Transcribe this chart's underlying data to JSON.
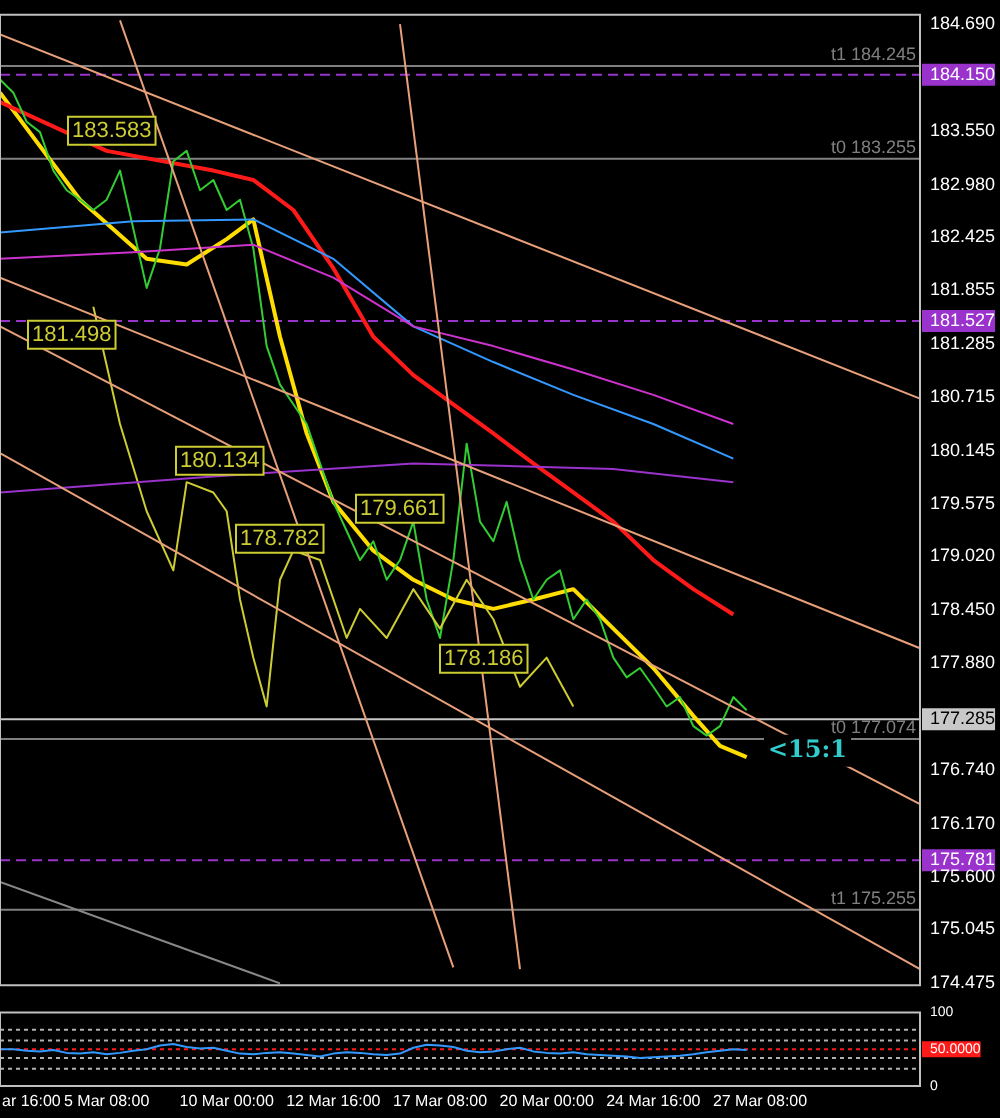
{
  "chart_data": [
    {
      "type": "line",
      "categories": [
        null,
        null,
        "ar 16:00",
        null,
        null,
        null,
        null,
        null,
        "5 Mar 08:00",
        null,
        null,
        null,
        null,
        null,
        null,
        null,
        null,
        "10 Mar 00:00",
        null,
        null,
        null,
        null,
        null,
        null,
        null,
        "12 Mar 16:00",
        null,
        null,
        null,
        null,
        null,
        null,
        null,
        "17 Mar 08:00",
        null,
        null,
        null,
        null,
        null,
        null,
        null,
        "20 Mar 00:00",
        null,
        null,
        null,
        null,
        null,
        null,
        null,
        "24 Mar 16:00",
        null,
        null,
        null,
        null,
        null,
        null,
        null,
        "27 Mar 08:00",
        null,
        null,
        null,
        null,
        null,
        null,
        null,
        null,
        null,
        null,
        null,
        null
      ],
      "series": [
        {
          "color": "#e8a07a",
          "values": [
            184.58,
            null,
            null,
            null,
            null,
            null,
            null,
            null,
            null,
            null,
            null,
            null,
            null,
            null,
            null,
            null,
            null,
            null,
            null,
            null,
            null,
            null,
            null,
            null,
            null,
            null,
            null,
            null,
            null,
            null,
            null,
            null,
            null,
            null,
            null,
            null,
            null,
            null,
            null,
            null,
            null,
            null,
            null,
            null,
            null,
            null,
            null,
            null,
            null,
            null,
            null,
            null,
            null,
            null,
            null,
            null,
            null,
            null,
            null,
            null,
            null,
            null,
            null,
            null,
            null,
            null,
            null,
            null,
            null,
            180.7
          ]
        },
        {
          "color": "#e8a07a",
          "values": [
            181.99,
            null,
            null,
            null,
            null,
            null,
            null,
            null,
            null,
            null,
            null,
            null,
            null,
            null,
            null,
            null,
            null,
            null,
            null,
            null,
            null,
            null,
            null,
            null,
            null,
            null,
            null,
            null,
            null,
            null,
            null,
            null,
            null,
            null,
            null,
            null,
            null,
            null,
            null,
            null,
            null,
            null,
            null,
            null,
            null,
            null,
            null,
            null,
            null,
            null,
            null,
            null,
            null,
            null,
            null,
            null,
            null,
            null,
            null,
            null,
            null,
            null,
            null,
            null,
            null,
            null,
            null,
            null,
            null,
            178.04
          ]
        },
        {
          "color": "#e8a07a",
          "values": [
            181.47,
            null,
            null,
            null,
            null,
            null,
            null,
            null,
            null,
            null,
            null,
            null,
            null,
            null,
            null,
            null,
            null,
            null,
            null,
            null,
            null,
            null,
            null,
            null,
            null,
            null,
            null,
            null,
            null,
            null,
            null,
            null,
            null,
            null,
            null,
            null,
            null,
            null,
            null,
            null,
            null,
            null,
            null,
            null,
            null,
            null,
            null,
            null,
            null,
            null,
            null,
            null,
            null,
            null,
            null,
            null,
            null,
            null,
            null,
            null,
            null,
            null,
            null,
            null,
            null,
            null,
            null,
            null,
            null,
            176.38
          ]
        },
        {
          "color": "#e8a07a",
          "values": [
            180.12,
            null,
            null,
            null,
            null,
            null,
            null,
            null,
            null,
            null,
            null,
            null,
            null,
            null,
            null,
            null,
            null,
            null,
            null,
            null,
            null,
            null,
            null,
            null,
            null,
            null,
            null,
            null,
            null,
            null,
            null,
            null,
            null,
            null,
            null,
            null,
            null,
            null,
            null,
            null,
            null,
            null,
            null,
            null,
            null,
            null,
            null,
            null,
            null,
            null,
            null,
            null,
            null,
            null,
            null,
            null,
            null,
            null,
            null,
            null,
            null,
            null,
            null,
            null,
            null,
            null,
            null,
            null,
            null,
            174.62
          ]
        },
        {
          "color": "#e8a07a",
          "values": [
            null,
            null,
            null,
            null,
            null,
            null,
            null,
            null,
            null,
            184.73,
            null,
            null,
            null,
            null,
            null,
            null,
            null,
            null,
            null,
            null,
            null,
            null,
            null,
            null,
            null,
            null,
            null,
            null,
            null,
            null,
            null,
            null,
            null,
            null,
            174.64,
            null,
            null,
            null,
            null,
            null,
            null,
            null,
            null,
            null,
            null,
            null,
            null,
            null,
            null,
            null,
            null,
            null,
            null,
            null,
            null,
            null,
            null,
            null,
            null,
            null,
            null,
            null,
            null,
            null,
            null,
            null,
            null,
            null,
            null,
            null
          ]
        },
        {
          "color": "#e8a07a",
          "values": [
            null,
            null,
            null,
            null,
            null,
            null,
            null,
            null,
            null,
            null,
            null,
            null,
            null,
            null,
            null,
            null,
            null,
            null,
            null,
            null,
            null,
            null,
            null,
            null,
            null,
            null,
            null,
            null,
            null,
            null,
            184.69,
            null,
            null,
            null,
            null,
            null,
            null,
            null,
            null,
            174.62,
            null,
            null,
            null,
            null,
            null,
            null,
            null,
            null,
            null,
            null,
            null,
            null,
            null,
            null,
            null,
            null,
            null,
            null,
            null,
            null,
            null,
            null,
            null,
            null,
            null,
            null,
            null,
            null,
            null,
            null
          ]
        },
        {
          "color": "#888888",
          "values": [
            175.55,
            null,
            null,
            null,
            null,
            null,
            null,
            null,
            null,
            null,
            null,
            null,
            null,
            null,
            null,
            null,
            null,
            null,
            null,
            null,
            null,
            174.47,
            null,
            null,
            null,
            null,
            null,
            null,
            null,
            null,
            null,
            null,
            null,
            null,
            null,
            null,
            null,
            null,
            null,
            null,
            null,
            null,
            null,
            null,
            null,
            null,
            null,
            null,
            null,
            null,
            null,
            null,
            null,
            null,
            null,
            null,
            null,
            null,
            null,
            null,
            null,
            null,
            null,
            null,
            null,
            null,
            null,
            null,
            null,
            null
          ]
        },
        {
          "color": "#9933cc",
          "values": [
            179.7,
            null,
            null,
            null,
            null,
            null,
            null,
            null,
            null,
            null,
            null,
            null,
            null,
            null,
            null,
            null,
            179.87,
            null,
            null,
            null,
            null,
            null,
            null,
            null,
            null,
            null,
            null,
            null,
            null,
            null,
            null,
            180.01,
            null,
            null,
            null,
            null,
            null,
            null,
            null,
            null,
            null,
            null,
            null,
            null,
            null,
            null,
            179.95,
            null,
            null,
            null,
            null,
            null,
            null,
            null,
            null,
            179.81,
            null,
            null,
            null,
            null,
            null,
            null,
            null,
            null,
            null,
            null,
            null,
            null,
            null,
            null
          ]
        },
        {
          "color": "#cc33cc",
          "values": [
            182.19,
            null,
            null,
            null,
            null,
            null,
            null,
            null,
            null,
            null,
            182.26,
            null,
            null,
            null,
            null,
            null,
            null,
            null,
            null,
            182.34,
            null,
            null,
            null,
            null,
            null,
            181.99,
            null,
            null,
            null,
            null,
            null,
            181.47,
            null,
            null,
            null,
            null,
            null,
            181.26,
            null,
            null,
            null,
            null,
            null,
            181.01,
            null,
            null,
            null,
            null,
            null,
            180.74,
            null,
            null,
            null,
            null,
            null,
            180.43,
            null,
            null,
            null,
            null,
            null,
            null,
            null,
            null,
            null,
            null,
            null,
            null,
            null,
            null
          ]
        },
        {
          "color": "#3399ff",
          "values": [
            182.47,
            null,
            null,
            null,
            null,
            null,
            null,
            null,
            null,
            null,
            182.59,
            null,
            null,
            null,
            null,
            null,
            null,
            null,
            null,
            182.61,
            null,
            null,
            null,
            null,
            null,
            182.19,
            null,
            null,
            null,
            null,
            null,
            181.47,
            null,
            null,
            null,
            null,
            null,
            181.09,
            null,
            null,
            null,
            null,
            null,
            180.74,
            null,
            null,
            null,
            null,
            null,
            180.43,
            null,
            null,
            null,
            null,
            null,
            180.06,
            null,
            null,
            null,
            null,
            null,
            null,
            null,
            null,
            null,
            null,
            null,
            null,
            null,
            null
          ]
        },
        {
          "color": "#cccc33",
          "values": [
            null,
            null,
            null,
            null,
            null,
            null,
            null,
            181.68,
            null,
            180.43,
            null,
            179.5,
            null,
            178.87,
            179.81,
            null,
            179.7,
            179.5,
            178.56,
            177.94,
            177.42,
            178.77,
            179.08,
            null,
            178.98,
            null,
            178.15,
            178.46,
            null,
            178.15,
            null,
            178.67,
            null,
            178.25,
            null,
            178.77,
            null,
            178.35,
            null,
            177.63,
            null,
            177.94,
            null,
            177.42,
            null,
            null,
            null,
            null,
            null,
            null,
            null,
            null,
            null,
            null,
            null,
            null,
            null,
            null,
            null,
            null,
            null,
            null,
            null,
            null,
            null,
            null,
            null,
            null,
            null,
            null
          ]
        },
        {
          "color": "#33cc33",
          "values": [
            184.1,
            183.96,
            183.65,
            183.54,
            183.13,
            182.92,
            182.82,
            182.71,
            182.82,
            183.13,
            182.51,
            181.88,
            182.3,
            183.23,
            183.34,
            182.92,
            183.03,
            182.71,
            182.82,
            182.3,
            181.26,
            180.85,
            180.64,
            180.43,
            180.01,
            179.6,
            179.29,
            178.98,
            179.18,
            178.77,
            178.98,
            179.39,
            178.56,
            178.15,
            178.98,
            180.22,
            179.39,
            179.18,
            179.6,
            178.98,
            178.56,
            178.77,
            178.87,
            178.35,
            178.56,
            178.35,
            177.94,
            177.73,
            177.83,
            177.63,
            177.42,
            177.52,
            177.21,
            177.11,
            177.21,
            177.52,
            177.38,
            null,
            null,
            null,
            null,
            null,
            null,
            null,
            null,
            null,
            null,
            null,
            null,
            null
          ]
        },
        {
          "color": "#ff1a1a",
          "values": [
            183.86,
            null,
            null,
            null,
            null,
            null,
            null,
            null,
            183.34,
            null,
            null,
            null,
            null,
            null,
            null,
            null,
            183.13,
            null,
            null,
            183.03,
            null,
            null,
            182.71,
            null,
            null,
            182.09,
            null,
            null,
            181.36,
            null,
            null,
            180.95,
            null,
            null,
            180.64,
            null,
            null,
            180.33,
            null,
            null,
            180.01,
            null,
            null,
            179.7,
            null,
            null,
            179.39,
            null,
            null,
            178.98,
            null,
            null,
            178.67,
            null,
            null,
            178.4,
            null,
            null,
            null,
            null,
            null,
            null,
            null,
            null,
            null,
            null,
            null,
            null,
            null,
            null
          ]
        },
        {
          "color": "#ffdd00",
          "values": [
            183.96,
            null,
            null,
            null,
            null,
            null,
            182.82,
            null,
            null,
            null,
            null,
            182.19,
            null,
            null,
            182.13,
            null,
            null,
            182.4,
            null,
            182.61,
            null,
            181.36,
            null,
            180.33,
            null,
            179.6,
            null,
            null,
            179.08,
            null,
            null,
            178.77,
            null,
            null,
            178.56,
            null,
            null,
            178.46,
            null,
            null,
            178.56,
            null,
            null,
            178.67,
            null,
            null,
            178.25,
            null,
            null,
            177.83,
            null,
            null,
            177.32,
            null,
            177.0,
            null,
            176.88,
            null,
            null,
            null,
            null,
            null,
            null,
            null,
            null,
            null,
            null,
            null,
            null,
            null
          ]
        }
      ],
      "ylim": [
        174.45,
        184.79
      ],
      "yticks": [
        {
          "value": 184.69,
          "label": "184.690"
        },
        {
          "value": 184.15,
          "label": "184.150"
        },
        {
          "value": 183.55,
          "label": "183.550"
        },
        {
          "value": 182.98,
          "label": "182.980"
        },
        {
          "value": 182.425,
          "label": "182.425"
        },
        {
          "value": 181.855,
          "label": "181.855"
        },
        {
          "value": 181.527,
          "label": "181.527"
        },
        {
          "value": 181.285,
          "label": "181.285"
        },
        {
          "value": 180.715,
          "label": "180.715"
        },
        {
          "value": 180.145,
          "label": "180.145"
        },
        {
          "value": 179.575,
          "label": "179.575"
        },
        {
          "value": 179.02,
          "label": "179.020"
        },
        {
          "value": 178.45,
          "label": "178.450"
        },
        {
          "value": 177.88,
          "label": "177.880"
        },
        {
          "value": 177.285,
          "label": "177.285"
        },
        {
          "value": 176.74,
          "label": "176.740"
        },
        {
          "value": 176.17,
          "label": "176.170"
        },
        {
          "value": 175.781,
          "label": "175.781"
        },
        {
          "value": 175.6,
          "label": "175.600"
        },
        {
          "value": 175.045,
          "label": "175.045"
        },
        {
          "value": 174.475,
          "label": "174.475"
        }
      ],
      "ref_lines": [
        {
          "axis": "y",
          "value": 184.15,
          "label": null,
          "color": "#9933cc",
          "line_style": "dashed"
        },
        {
          "axis": "y",
          "value": 181.527,
          "label": null,
          "color": "#9933cc",
          "line_style": "dashed"
        },
        {
          "axis": "y",
          "value": 175.781,
          "label": null,
          "color": "#9933cc",
          "line_style": "dashed"
        },
        {
          "axis": "y",
          "value": 177.285,
          "label": null,
          "color": "#c8c8c8",
          "line_style": "solid"
        },
        {
          "axis": "y",
          "value": 184.245,
          "label": "t1 184.245",
          "color": "#808080",
          "line_style": "solid"
        },
        {
          "axis": "y",
          "value": 183.255,
          "label": "t0 183.255",
          "color": "#808080",
          "line_style": "solid"
        },
        {
          "axis": "y",
          "value": 177.074,
          "label": "t0 177.074",
          "color": "#808080",
          "line_style": "solid"
        },
        {
          "axis": "y",
          "value": 175.255,
          "label": "t1 175.255",
          "color": "#808080",
          "line_style": "solid"
        }
      ],
      "annotations": [
        "183.583",
        "181.498",
        "180.134",
        "179.661",
        "178.782",
        "178.186",
        "<15:1"
      ],
      "grid": false,
      "legend": false,
      "tick_labels": "y",
      "marker": "none",
      "line_style": "solid"
    },
    {
      "type": "line",
      "series": [
        {
          "color": "#3399ff",
          "values": [
            50,
            50,
            48,
            47,
            49,
            45,
            44,
            46,
            43,
            45,
            48,
            50,
            55,
            57,
            53,
            51,
            52,
            48,
            44,
            43,
            45,
            46,
            44,
            42,
            40,
            44,
            46,
            45,
            43,
            42,
            44,
            52,
            56,
            55,
            53,
            48,
            46,
            47,
            50,
            52,
            47,
            45,
            44,
            46,
            43,
            42,
            41,
            40,
            38,
            39,
            40,
            41,
            43,
            46,
            48,
            50,
            49,
            null,
            null,
            null,
            null,
            null,
            null,
            null,
            null,
            null,
            null,
            null,
            null,
            null
          ]
        }
      ],
      "ylim": [
        0,
        100
      ],
      "yticks": [
        100,
        {
          "value": 50,
          "label": "50.0000"
        },
        0
      ],
      "ref_lines": [
        {
          "axis": "y",
          "value": 50,
          "label": null,
          "color": "#ff1a1a",
          "line_style": "dotted"
        },
        {
          "axis": "y",
          "value": 76.4,
          "label": null,
          "color": "#b0b0b0",
          "line_style": "dotted"
        },
        {
          "axis": "y",
          "value": 61.8,
          "label": null,
          "color": "#b0b0b0",
          "line_style": "dotted"
        },
        {
          "axis": "y",
          "value": 38.2,
          "label": null,
          "color": "#b0b0b0",
          "line_style": "dotted"
        },
        {
          "axis": "y",
          "value": 23.6,
          "label": null,
          "color": "#b0b0b0",
          "line_style": "dotted"
        }
      ],
      "grid": false,
      "legend": false,
      "marker": "none",
      "line_style": "solid"
    }
  ]
}
